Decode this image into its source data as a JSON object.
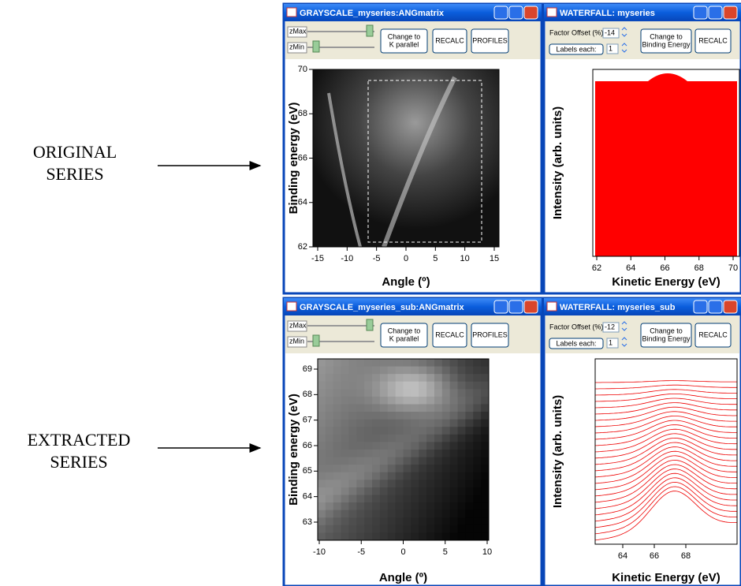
{
  "annotations": [
    [
      "ORIGINAL",
      "SERIES"
    ],
    [
      "EXTRACTED",
      "SERIES"
    ]
  ],
  "windows": [
    {
      "title": "GRAYSCALE_myseries:ANGmatrix",
      "zmax": "zMax",
      "zmin": "zMin",
      "buttons": [
        [
          "Change to",
          "K parallel"
        ],
        [
          "RECALC"
        ],
        [
          "PROFILES"
        ]
      ],
      "xticks": [
        "-15",
        "-10",
        "-5",
        "0",
        "5",
        "10",
        "15"
      ],
      "yticks": [
        "62",
        "64",
        "66",
        "68",
        "70"
      ],
      "xlabel": "Angle (º)",
      "ylabel": "Binding energy (eV)"
    },
    {
      "title": "WATERFALL: myseries",
      "offset_label": "Factor Offset (%)",
      "offset": "-14",
      "labels_each": "Labels each:",
      "labels_value": "1",
      "buttons": [
        [
          "Change to",
          "Binding Energy"
        ],
        [
          "RECALC"
        ]
      ],
      "xticks": [
        "62",
        "64",
        "66",
        "68",
        "70"
      ],
      "xlabel": "Kinetic Energy (eV)",
      "ylabel": "Intensity (arb. units)"
    },
    {
      "title": "GRAYSCALE_myseries_sub:ANGmatrix",
      "zmax": "zMax",
      "zmin": "zMin",
      "buttons": [
        [
          "Change to",
          "K parallel"
        ],
        [
          "RECALC"
        ],
        [
          "PROFILES"
        ]
      ],
      "xticks": [
        "-10",
        "-5",
        "0",
        "5",
        "10"
      ],
      "yticks": [
        "63",
        "64",
        "65",
        "66",
        "67",
        "68",
        "69"
      ],
      "xlabel": "Angle (º)",
      "ylabel": "Binding energy (eV)"
    },
    {
      "title": "WATERFALL: myseries_sub",
      "offset_label": "Factor Offset (%)",
      "offset": "-12",
      "labels_each": "Labels each:",
      "labels_value": "1",
      "buttons": [
        [
          "Change to",
          "Binding Energy"
        ],
        [
          "RECALC"
        ]
      ],
      "xticks": [
        "64",
        "66",
        "68"
      ],
      "xlabel": "Kinetic Energy (eV)",
      "ylabel": "Intensity (arb. units)"
    }
  ]
}
